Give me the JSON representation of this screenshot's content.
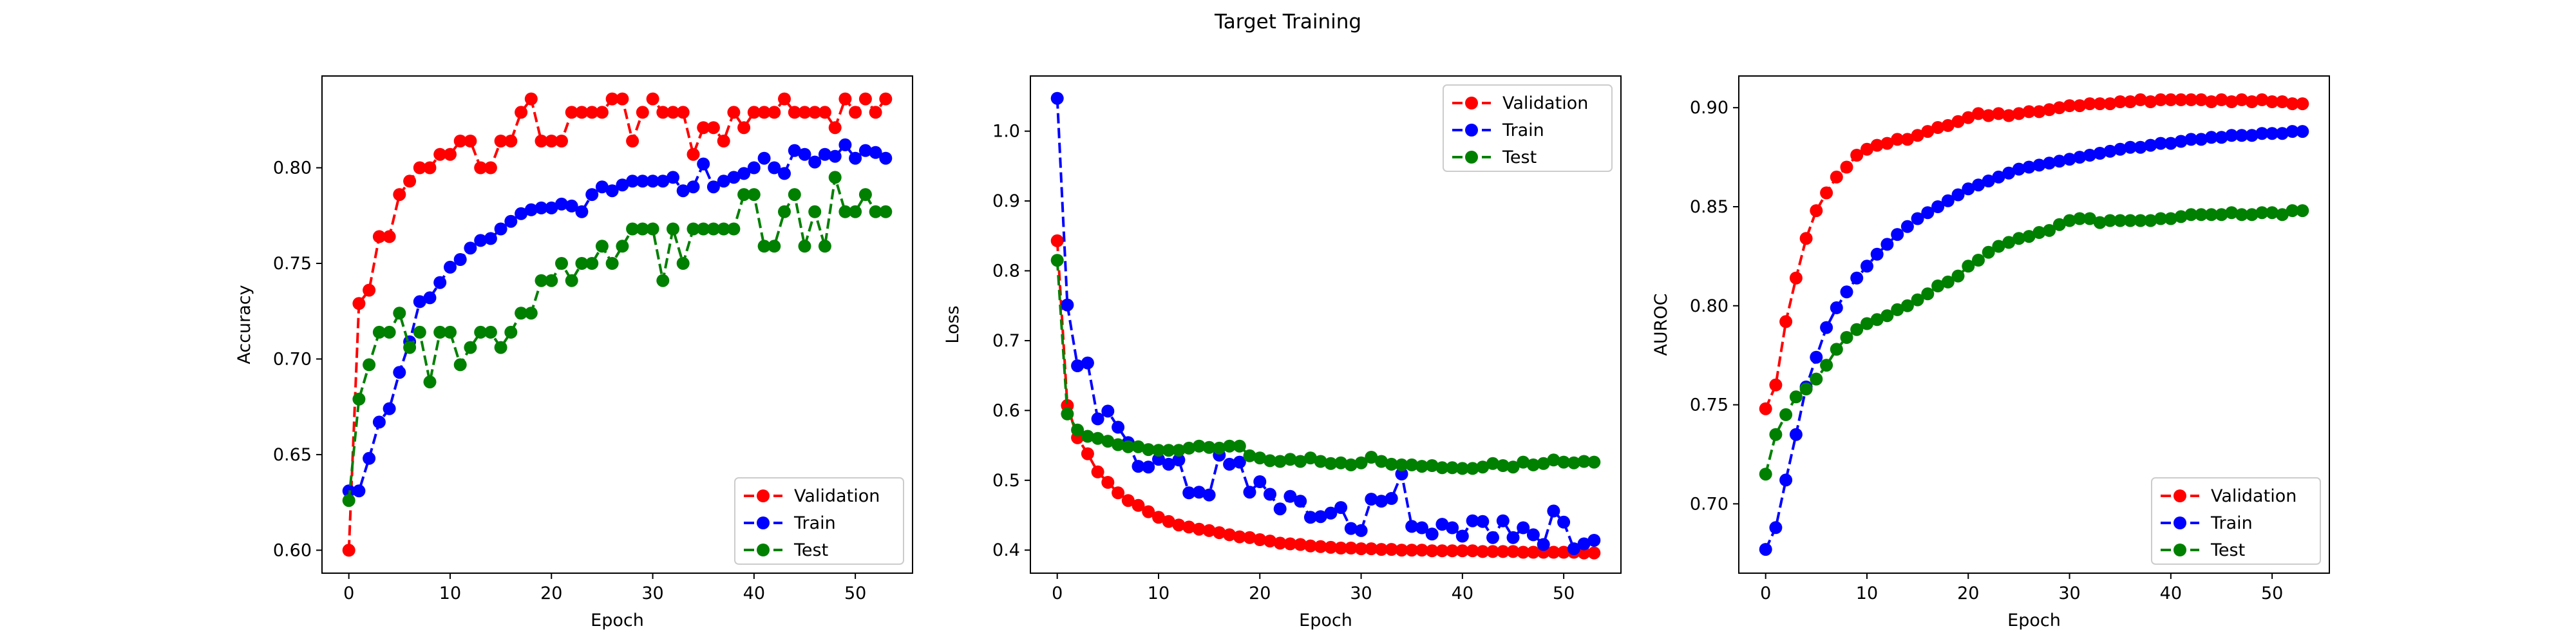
{
  "figure": {
    "title": "Target Training",
    "colors": {
      "Validation": "#ff0000",
      "Train": "#0000ff",
      "Test": "#008000"
    }
  },
  "chart_data": [
    {
      "type": "line",
      "title": "",
      "xlabel": "Epoch",
      "ylabel": "Accuracy",
      "xlim": [
        -2.65,
        55.65
      ],
      "ylim": [
        0.588,
        0.848
      ],
      "xticks": [
        0,
        10,
        20,
        30,
        40,
        50
      ],
      "yticks": [
        0.6,
        0.65,
        0.7,
        0.75,
        0.8
      ],
      "ytick_labels": [
        "0.60",
        "0.65",
        "0.70",
        "0.75",
        "0.80"
      ],
      "legend_position": "lower-right",
      "grid": false,
      "x": [
        0,
        1,
        2,
        3,
        4,
        5,
        6,
        7,
        8,
        9,
        10,
        11,
        12,
        13,
        14,
        15,
        16,
        17,
        18,
        19,
        20,
        21,
        22,
        23,
        24,
        25,
        26,
        27,
        28,
        29,
        30,
        31,
        32,
        33,
        34,
        35,
        36,
        37,
        38,
        39,
        40,
        41,
        42,
        43,
        44,
        45,
        46,
        47,
        48,
        49,
        50,
        51,
        52,
        53
      ],
      "series": [
        {
          "name": "Validation",
          "color": "#ff0000",
          "values": [
            0.6,
            0.729,
            0.736,
            0.764,
            0.764,
            0.786,
            0.793,
            0.8,
            0.8,
            0.807,
            0.807,
            0.814,
            0.814,
            0.8,
            0.8,
            0.814,
            0.814,
            0.829,
            0.836,
            0.814,
            0.814,
            0.814,
            0.829,
            0.829,
            0.829,
            0.829,
            0.836,
            0.836,
            0.814,
            0.829,
            0.836,
            0.829,
            0.829,
            0.829,
            0.807,
            0.821,
            0.821,
            0.814,
            0.829,
            0.821,
            0.829,
            0.829,
            0.829,
            0.836,
            0.829,
            0.829,
            0.829,
            0.829,
            0.821,
            0.836,
            0.829,
            0.836,
            0.829,
            0.836
          ]
        },
        {
          "name": "Train",
          "color": "#0000ff",
          "values": [
            0.631,
            0.631,
            0.648,
            0.667,
            0.674,
            0.693,
            0.709,
            0.73,
            0.732,
            0.74,
            0.748,
            0.752,
            0.758,
            0.762,
            0.763,
            0.768,
            0.772,
            0.776,
            0.778,
            0.779,
            0.779,
            0.781,
            0.78,
            0.777,
            0.786,
            0.79,
            0.788,
            0.791,
            0.793,
            0.793,
            0.793,
            0.793,
            0.795,
            0.788,
            0.79,
            0.802,
            0.79,
            0.793,
            0.795,
            0.797,
            0.8,
            0.805,
            0.8,
            0.797,
            0.809,
            0.807,
            0.803,
            0.807,
            0.806,
            0.812,
            0.805,
            0.809,
            0.808,
            0.805
          ]
        },
        {
          "name": "Test",
          "color": "#008000",
          "values": [
            0.626,
            0.679,
            0.697,
            0.714,
            0.714,
            0.724,
            0.706,
            0.714,
            0.688,
            0.714,
            0.714,
            0.697,
            0.706,
            0.714,
            0.714,
            0.706,
            0.714,
            0.724,
            0.724,
            0.741,
            0.741,
            0.75,
            0.741,
            0.75,
            0.75,
            0.759,
            0.75,
            0.759,
            0.768,
            0.768,
            0.768,
            0.741,
            0.768,
            0.75,
            0.768,
            0.768,
            0.768,
            0.768,
            0.768,
            0.786,
            0.786,
            0.759,
            0.759,
            0.777,
            0.786,
            0.759,
            0.777,
            0.759,
            0.795,
            0.777,
            0.777,
            0.786,
            0.777,
            0.777
          ]
        }
      ]
    },
    {
      "type": "line",
      "title": "",
      "xlabel": "Epoch",
      "ylabel": "Loss",
      "xlim": [
        -2.65,
        55.65
      ],
      "ylim": [
        0.367,
        1.079
      ],
      "xticks": [
        0,
        10,
        20,
        30,
        40,
        50
      ],
      "yticks": [
        0.4,
        0.5,
        0.6,
        0.7,
        0.8,
        0.9,
        1.0
      ],
      "ytick_labels": [
        "0.4",
        "0.5",
        "0.6",
        "0.7",
        "0.8",
        "0.9",
        "1.0"
      ],
      "legend_position": "upper-right",
      "grid": false,
      "x": [
        0,
        1,
        2,
        3,
        4,
        5,
        6,
        7,
        8,
        9,
        10,
        11,
        12,
        13,
        14,
        15,
        16,
        17,
        18,
        19,
        20,
        21,
        22,
        23,
        24,
        25,
        26,
        27,
        28,
        29,
        30,
        31,
        32,
        33,
        34,
        35,
        36,
        37,
        38,
        39,
        40,
        41,
        42,
        43,
        44,
        45,
        46,
        47,
        48,
        49,
        50,
        51,
        52,
        53
      ],
      "series": [
        {
          "name": "Validation",
          "color": "#ff0000",
          "values": [
            0.843,
            0.607,
            0.561,
            0.538,
            0.512,
            0.497,
            0.482,
            0.471,
            0.464,
            0.455,
            0.447,
            0.441,
            0.436,
            0.433,
            0.43,
            0.428,
            0.425,
            0.422,
            0.419,
            0.418,
            0.415,
            0.413,
            0.41,
            0.409,
            0.408,
            0.406,
            0.405,
            0.404,
            0.403,
            0.403,
            0.402,
            0.402,
            0.401,
            0.401,
            0.4,
            0.4,
            0.4,
            0.399,
            0.399,
            0.399,
            0.399,
            0.399,
            0.398,
            0.398,
            0.398,
            0.398,
            0.397,
            0.397,
            0.397,
            0.397,
            0.397,
            0.397,
            0.396,
            0.396
          ]
        },
        {
          "name": "Train",
          "color": "#0000ff",
          "values": [
            1.047,
            0.751,
            0.664,
            0.668,
            0.588,
            0.599,
            0.576,
            0.554,
            0.52,
            0.519,
            0.53,
            0.523,
            0.529,
            0.482,
            0.483,
            0.479,
            0.536,
            0.523,
            0.526,
            0.483,
            0.498,
            0.48,
            0.459,
            0.477,
            0.47,
            0.447,
            0.448,
            0.453,
            0.461,
            0.431,
            0.428,
            0.473,
            0.47,
            0.474,
            0.509,
            0.434,
            0.432,
            0.423,
            0.437,
            0.432,
            0.42,
            0.442,
            0.441,
            0.418,
            0.442,
            0.418,
            0.432,
            0.422,
            0.408,
            0.456,
            0.44,
            0.402,
            0.409,
            0.414
          ]
        },
        {
          "name": "Test",
          "color": "#008000",
          "values": [
            0.815,
            0.595,
            0.572,
            0.563,
            0.56,
            0.556,
            0.551,
            0.548,
            0.548,
            0.544,
            0.543,
            0.543,
            0.543,
            0.546,
            0.549,
            0.547,
            0.546,
            0.549,
            0.549,
            0.535,
            0.532,
            0.528,
            0.527,
            0.53,
            0.527,
            0.532,
            0.527,
            0.524,
            0.525,
            0.522,
            0.525,
            0.533,
            0.527,
            0.523,
            0.522,
            0.522,
            0.52,
            0.521,
            0.518,
            0.518,
            0.517,
            0.517,
            0.519,
            0.524,
            0.521,
            0.519,
            0.526,
            0.522,
            0.524,
            0.529,
            0.526,
            0.525,
            0.527,
            0.526
          ]
        }
      ]
    },
    {
      "type": "line",
      "title": "",
      "xlabel": "Epoch",
      "ylabel": "AUROC",
      "xlim": [
        -2.65,
        55.65
      ],
      "ylim": [
        0.665,
        0.916
      ],
      "xticks": [
        0,
        10,
        20,
        30,
        40,
        50
      ],
      "yticks": [
        0.7,
        0.75,
        0.8,
        0.85,
        0.9
      ],
      "ytick_labels": [
        "0.70",
        "0.75",
        "0.80",
        "0.85",
        "0.90"
      ],
      "legend_position": "lower-right",
      "grid": false,
      "x": [
        0,
        1,
        2,
        3,
        4,
        5,
        6,
        7,
        8,
        9,
        10,
        11,
        12,
        13,
        14,
        15,
        16,
        17,
        18,
        19,
        20,
        21,
        22,
        23,
        24,
        25,
        26,
        27,
        28,
        29,
        30,
        31,
        32,
        33,
        34,
        35,
        36,
        37,
        38,
        39,
        40,
        41,
        42,
        43,
        44,
        45,
        46,
        47,
        48,
        49,
        50,
        51,
        52,
        53
      ],
      "series": [
        {
          "name": "Validation",
          "color": "#ff0000",
          "values": [
            0.748,
            0.76,
            0.792,
            0.814,
            0.834,
            0.848,
            0.857,
            0.865,
            0.87,
            0.876,
            0.879,
            0.881,
            0.882,
            0.884,
            0.884,
            0.886,
            0.888,
            0.89,
            0.891,
            0.893,
            0.895,
            0.897,
            0.896,
            0.897,
            0.896,
            0.897,
            0.898,
            0.898,
            0.899,
            0.9,
            0.901,
            0.901,
            0.902,
            0.902,
            0.902,
            0.903,
            0.903,
            0.904,
            0.903,
            0.904,
            0.904,
            0.904,
            0.904,
            0.904,
            0.903,
            0.904,
            0.903,
            0.904,
            0.903,
            0.904,
            0.903,
            0.903,
            0.902,
            0.902
          ]
        },
        {
          "name": "Train",
          "color": "#0000ff",
          "values": [
            0.677,
            0.688,
            0.712,
            0.735,
            0.759,
            0.774,
            0.789,
            0.799,
            0.807,
            0.814,
            0.82,
            0.826,
            0.831,
            0.836,
            0.84,
            0.844,
            0.847,
            0.85,
            0.853,
            0.856,
            0.859,
            0.861,
            0.863,
            0.865,
            0.867,
            0.869,
            0.87,
            0.871,
            0.872,
            0.873,
            0.874,
            0.875,
            0.876,
            0.877,
            0.878,
            0.879,
            0.88,
            0.88,
            0.881,
            0.882,
            0.882,
            0.883,
            0.884,
            0.884,
            0.885,
            0.885,
            0.886,
            0.886,
            0.886,
            0.887,
            0.887,
            0.887,
            0.888,
            0.888
          ]
        },
        {
          "name": "Test",
          "color": "#008000",
          "values": [
            0.715,
            0.735,
            0.745,
            0.754,
            0.758,
            0.763,
            0.77,
            0.778,
            0.784,
            0.788,
            0.791,
            0.793,
            0.795,
            0.798,
            0.8,
            0.803,
            0.806,
            0.81,
            0.812,
            0.815,
            0.82,
            0.823,
            0.827,
            0.83,
            0.832,
            0.834,
            0.835,
            0.837,
            0.838,
            0.841,
            0.843,
            0.844,
            0.844,
            0.842,
            0.843,
            0.843,
            0.843,
            0.843,
            0.843,
            0.844,
            0.844,
            0.845,
            0.846,
            0.846,
            0.846,
            0.846,
            0.847,
            0.846,
            0.846,
            0.847,
            0.847,
            0.846,
            0.848,
            0.848
          ]
        }
      ]
    }
  ]
}
